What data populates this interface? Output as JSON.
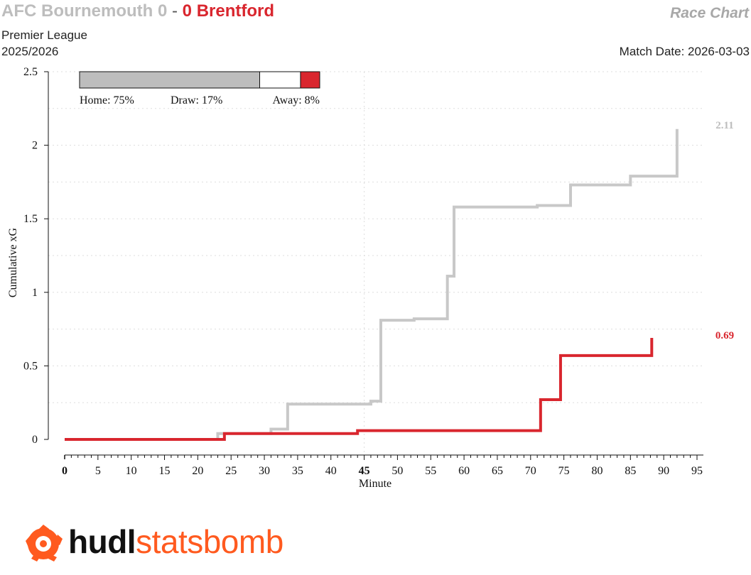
{
  "header": {
    "home_team_score": "AFC Bournemouth 0",
    "separator": "-",
    "away_team_score": "0 Brentford",
    "competition": "Premier League",
    "season": "2025/2026",
    "chart_name": "Race Chart",
    "match_date": "Match Date: 2026-03-03"
  },
  "colors": {
    "home": "#c8c8c8",
    "away": "#d9262e",
    "draw": "#ffffff",
    "home_bar": "#bdbdbd"
  },
  "probabilities": {
    "home_label": "Home: 75%",
    "draw_label": "Draw: 17%",
    "away_label": "Away: 8%",
    "home": 0.75,
    "draw": 0.17,
    "away": 0.08
  },
  "chart_data": {
    "type": "line",
    "step": true,
    "xlabel": "Minute",
    "ylabel": "Cumulative xG",
    "xlim": [
      0,
      95
    ],
    "ylim": [
      0,
      2.5
    ],
    "xticks": [
      0,
      5,
      10,
      15,
      20,
      25,
      30,
      35,
      40,
      45,
      50,
      55,
      60,
      65,
      70,
      75,
      80,
      85,
      90,
      95
    ],
    "yticks": [
      0,
      0.5,
      1,
      1.5,
      2,
      2.5
    ],
    "grid": true,
    "series": [
      {
        "name": "AFC Bournemouth",
        "end_label": "2.11",
        "points": [
          [
            0,
            0
          ],
          [
            23,
            0.04
          ],
          [
            31,
            0.07
          ],
          [
            33.5,
            0.24
          ],
          [
            46,
            0.26
          ],
          [
            47.5,
            0.81
          ],
          [
            52.5,
            0.82
          ],
          [
            57.5,
            1.11
          ],
          [
            58.5,
            1.58
          ],
          [
            71,
            1.59
          ],
          [
            76,
            1.73
          ],
          [
            85,
            1.79
          ],
          [
            92,
            2.11
          ]
        ]
      },
      {
        "name": "Brentford",
        "end_label": "0.69",
        "points": [
          [
            0,
            0
          ],
          [
            24,
            0.04
          ],
          [
            44,
            0.06
          ],
          [
            71.5,
            0.27
          ],
          [
            74.5,
            0.57
          ],
          [
            88.2,
            0.69
          ]
        ]
      }
    ]
  },
  "logo": {
    "hudl": "hudl",
    "statsbomb": "statsbomb",
    "icon": "statsbomb-icon"
  }
}
